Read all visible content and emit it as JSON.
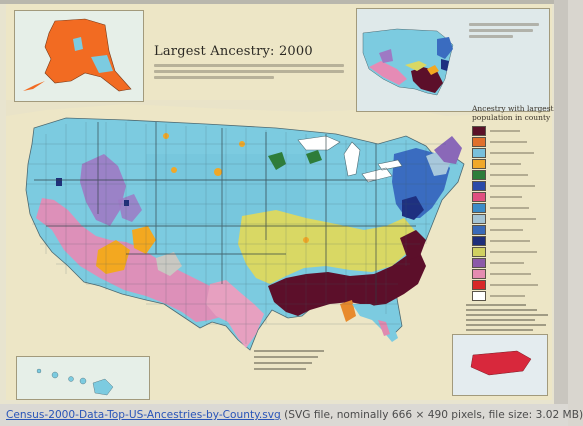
{
  "map": {
    "title": "Largest Ancestry: 2000",
    "legend_title_line1": "Ancestry with largest",
    "legend_title_line2": "population in county",
    "legend_colors": [
      "#5a1228",
      "#e0702c",
      "#78c0dc",
      "#f0a828",
      "#2e7d3a",
      "#2a4aa8",
      "#e05080",
      "#3c8cc8",
      "#a4c4d4",
      "#3a6ab8",
      "#1e2e7a",
      "#d0d060",
      "#8c5aa8",
      "#e48cb0",
      "#d82828",
      "#ffffff"
    ]
  },
  "caption": {
    "link_text": "Census-2000-Data-Top-US-Ancestries-by-County.svg",
    "info_text": "(SVG file, nominally 666 × 490 pixels, file size: 3.02 MB)"
  }
}
